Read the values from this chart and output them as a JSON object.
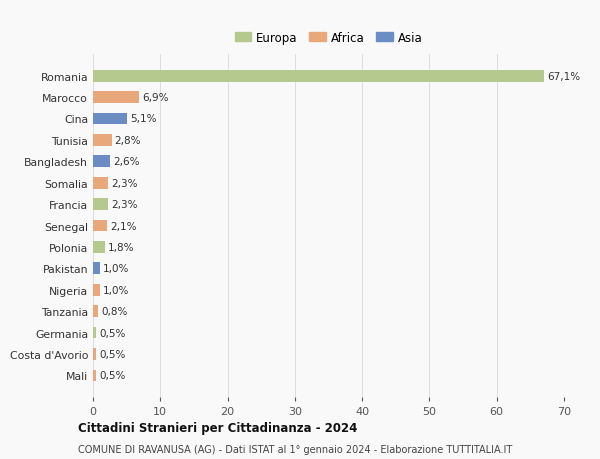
{
  "countries": [
    "Romania",
    "Marocco",
    "Cina",
    "Tunisia",
    "Bangladesh",
    "Somalia",
    "Francia",
    "Senegal",
    "Polonia",
    "Pakistan",
    "Nigeria",
    "Tanzania",
    "Germania",
    "Costa d'Avorio",
    "Mali"
  ],
  "values": [
    67.1,
    6.9,
    5.1,
    2.8,
    2.6,
    2.3,
    2.3,
    2.1,
    1.8,
    1.0,
    1.0,
    0.8,
    0.5,
    0.5,
    0.5
  ],
  "labels": [
    "67,1%",
    "6,9%",
    "5,1%",
    "2,8%",
    "2,6%",
    "2,3%",
    "2,3%",
    "2,1%",
    "1,8%",
    "1,0%",
    "1,0%",
    "0,8%",
    "0,5%",
    "0,5%",
    "0,5%"
  ],
  "continents": [
    "Europa",
    "Africa",
    "Asia",
    "Africa",
    "Asia",
    "Africa",
    "Europa",
    "Africa",
    "Europa",
    "Asia",
    "Africa",
    "Africa",
    "Europa",
    "Africa",
    "Africa"
  ],
  "colors": {
    "Europa": "#b5c98e",
    "Africa": "#e8a87c",
    "Asia": "#6b8dc4"
  },
  "title1": "Cittadini Stranieri per Cittadinanza - 2024",
  "title2": "COMUNE DI RAVANUSA (AG) - Dati ISTAT al 1° gennaio 2024 - Elaborazione TUTTITALIA.IT",
  "xlim": [
    0,
    70
  ],
  "xticks": [
    0,
    10,
    20,
    30,
    40,
    50,
    60,
    70
  ],
  "bg_color": "#f9f9f9",
  "grid_color": "#dddddd",
  "bar_height": 0.55
}
